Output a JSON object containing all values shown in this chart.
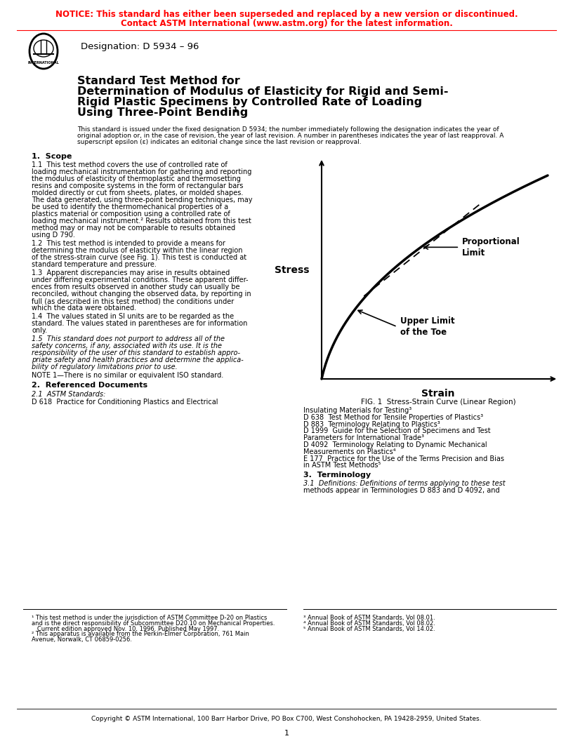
{
  "notice_line1": "NOTICE: This standard has either been superseded and replaced by a new version or discontinued.",
  "notice_line2": "Contact ASTM International (www.astm.org) for the latest information.",
  "designation": "Designation: D 5934 – 96",
  "title_line1": "Standard Test Method for",
  "title_line2": "Determination of Modulus of Elasticity for Rigid and Semi-",
  "title_line3": "Rigid Plastic Specimens by Controlled Rate of Loading",
  "title_line4": "Using Three-Point Bending",
  "title_superscript": "1",
  "preamble": "This standard is issued under the fixed designation D 5934; the number immediately following the designation indicates the year of\noriginal adoption or, in the case of revision, the year of last revision. A number in parentheses indicates the year of last reapproval. A\nsuperscript epsilon (ε) indicates an editorial change since the last revision or reapproval.",
  "section1_head": "1.  Scope",
  "note1": "NOTE 1—There is no similar or equivalent ISO standard.",
  "section2_head": "2.  Referenced Documents",
  "section2_sub": "2.1  ASTM Standards:",
  "section3_head": "3.  Terminology",
  "fig_caption": "FIG. 1  Stress-Strain Curve (Linear Region)",
  "stress_label": "Stress",
  "strain_label": "Strain",
  "prop_limit_label": "Proportional\nLimit",
  "upper_limit_label": "Upper Limit\nof the Toe",
  "copyright": "Copyright © ASTM International, 100 Barr Harbor Drive, PO Box C700, West Conshohocken, PA 19428-2959, United States.",
  "page_number": "1",
  "notice_color": "#FF0000",
  "text_color": "#000000",
  "bg_color": "#FFFFFF"
}
